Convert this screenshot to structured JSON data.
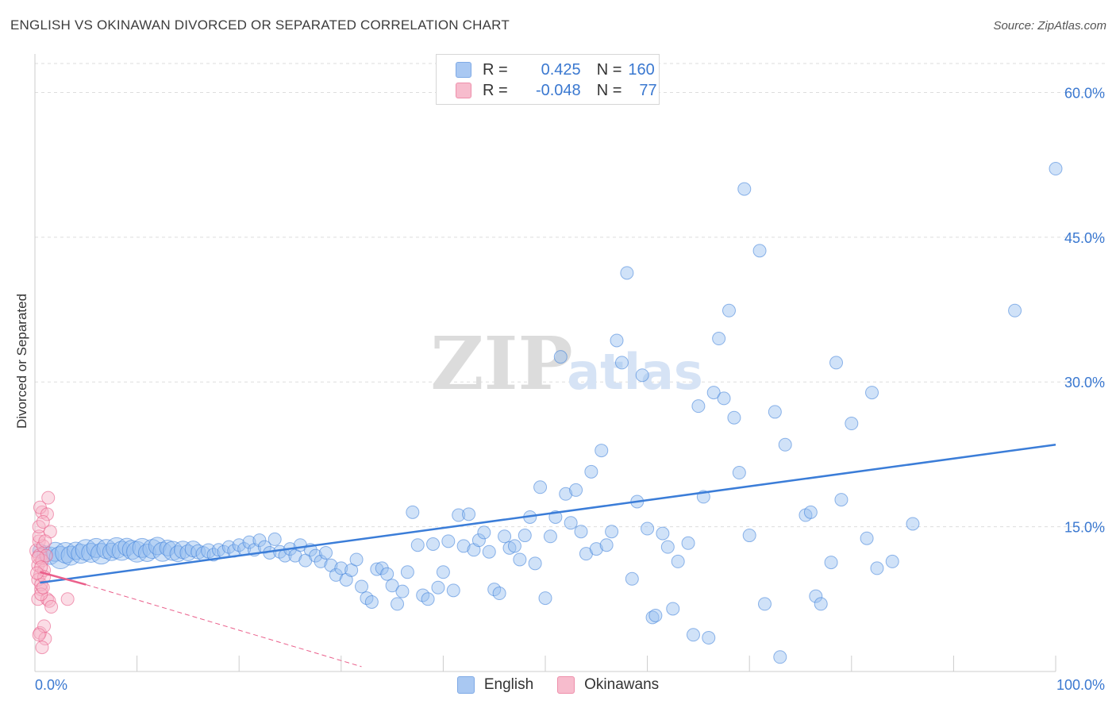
{
  "title": "ENGLISH VS OKINAWAN DIVORCED OR SEPARATED CORRELATION CHART",
  "source": "Source: ZipAtlas.com",
  "watermark": {
    "zip": "ZIP",
    "atlas": "atlas"
  },
  "legend": {
    "rows": [
      {
        "r_label": "R =",
        "r_value": "0.425",
        "n_label": "N =",
        "n_value": "160",
        "color": "#a9c8f2",
        "border": "#7faae6"
      },
      {
        "r_label": "R =",
        "r_value": "-0.048",
        "n_label": "N =",
        "n_value": "77",
        "color": "#f7bccd",
        "border": "#ee8fab"
      }
    ],
    "bottom": [
      {
        "label": "English",
        "color": "#a9c8f2",
        "border": "#7faae6"
      },
      {
        "label": "Okinawans",
        "color": "#f7bccd",
        "border": "#ee8fab"
      }
    ]
  },
  "chart_data": {
    "type": "scatter",
    "title": "ENGLISH VS OKINAWAN DIVORCED OR SEPARATED CORRELATION CHART",
    "xlabel": "",
    "ylabel": "Divorced or Separated",
    "xlim": [
      0,
      100
    ],
    "ylim": [
      0,
      63
    ],
    "x_tick_labels": [
      "0.0%",
      "100.0%"
    ],
    "y_ticks": [
      15,
      30,
      45,
      60
    ],
    "y_tick_labels": [
      "15.0%",
      "30.0%",
      "45.0%",
      "60.0%"
    ],
    "colors": {
      "english": "#3b7dd8",
      "english_fill": "rgba(150,190,240,0.45)",
      "okinawan": "#ea5f8b",
      "okinawan_fill": "rgba(247,180,200,0.45)",
      "grid": "#dddddd",
      "tick_text": "#3a78d0"
    },
    "series": [
      {
        "name": "English",
        "trend": {
          "x": [
            0.5,
            100
          ],
          "y": [
            9.2,
            23.5
          ]
        },
        "points": [
          [
            0.5,
            12.5,
            9
          ],
          [
            1.0,
            12.2,
            10
          ],
          [
            1.5,
            12.0,
            11
          ],
          [
            2.0,
            12.4,
            12
          ],
          [
            2.5,
            11.8,
            14
          ],
          [
            3.0,
            12.3,
            13
          ],
          [
            3.5,
            12.0,
            12
          ],
          [
            4.0,
            12.5,
            11
          ],
          [
            4.5,
            12.2,
            12
          ],
          [
            5.0,
            12.6,
            13
          ],
          [
            5.5,
            12.3,
            12
          ],
          [
            6.0,
            12.8,
            12
          ],
          [
            6.5,
            12.2,
            13
          ],
          [
            7.0,
            12.7,
            12
          ],
          [
            7.5,
            12.4,
            11
          ],
          [
            8.0,
            12.8,
            13
          ],
          [
            8.5,
            12.5,
            12
          ],
          [
            9.0,
            12.9,
            11
          ],
          [
            9.5,
            12.6,
            12
          ],
          [
            10.0,
            12.4,
            13
          ],
          [
            10.5,
            12.8,
            12
          ],
          [
            11.0,
            12.3,
            11
          ],
          [
            11.5,
            12.7,
            12
          ],
          [
            12.0,
            13.0,
            11
          ],
          [
            12.5,
            12.4,
            12
          ],
          [
            13.0,
            12.8,
            10
          ],
          [
            13.5,
            12.5,
            12
          ],
          [
            14.0,
            12.2,
            10
          ],
          [
            14.5,
            12.6,
            11
          ],
          [
            15.0,
            12.3,
            10
          ],
          [
            15.5,
            12.7,
            10
          ],
          [
            16.0,
            12.4,
            9
          ],
          [
            16.5,
            12.2,
            9
          ],
          [
            17.0,
            12.5,
            9
          ],
          [
            17.5,
            12.1,
            8
          ],
          [
            18.0,
            12.6,
            8
          ],
          [
            18.5,
            12.4,
            8
          ],
          [
            19.0,
            12.9,
            8
          ],
          [
            19.5,
            12.5,
            8
          ],
          [
            20.0,
            13.1,
            8
          ],
          [
            20.5,
            12.7,
            8
          ],
          [
            21.0,
            13.4,
            8
          ],
          [
            21.5,
            12.6,
            8
          ],
          [
            22.0,
            13.6,
            8
          ],
          [
            22.5,
            12.9,
            8
          ],
          [
            23.0,
            12.3,
            8
          ],
          [
            23.5,
            13.7,
            8
          ],
          [
            24.0,
            12.4,
            8
          ],
          [
            24.5,
            12.0,
            8
          ],
          [
            25.0,
            12.7,
            8
          ],
          [
            25.5,
            12.0,
            8
          ],
          [
            26.0,
            13.1,
            8
          ],
          [
            26.5,
            11.5,
            8
          ],
          [
            27.0,
            12.6,
            8
          ],
          [
            27.5,
            12.0,
            8
          ],
          [
            28.0,
            11.4,
            8
          ],
          [
            28.5,
            12.3,
            8
          ],
          [
            29.0,
            11.0,
            8
          ],
          [
            29.5,
            10.0,
            8
          ],
          [
            30.0,
            10.7,
            8
          ],
          [
            30.5,
            9.5,
            8
          ],
          [
            31.0,
            10.5,
            8
          ],
          [
            31.5,
            11.6,
            8
          ],
          [
            32.0,
            8.8,
            8
          ],
          [
            32.5,
            7.6,
            8
          ],
          [
            33.0,
            7.2,
            8
          ],
          [
            33.5,
            10.6,
            8
          ],
          [
            34.0,
            10.7,
            8
          ],
          [
            34.5,
            10.1,
            8
          ],
          [
            35.0,
            8.9,
            8
          ],
          [
            35.5,
            7.0,
            8
          ],
          [
            36.0,
            8.3,
            8
          ],
          [
            36.5,
            10.3,
            8
          ],
          [
            37.0,
            16.5,
            8
          ],
          [
            37.5,
            13.1,
            8
          ],
          [
            38.0,
            7.9,
            8
          ],
          [
            38.5,
            7.5,
            8
          ],
          [
            39.0,
            13.2,
            8
          ],
          [
            39.5,
            8.7,
            8
          ],
          [
            40.0,
            10.3,
            8
          ],
          [
            40.5,
            13.5,
            8
          ],
          [
            41.0,
            8.4,
            8
          ],
          [
            41.5,
            16.2,
            8
          ],
          [
            42.0,
            13.0,
            8
          ],
          [
            42.5,
            16.3,
            8
          ],
          [
            43.0,
            12.6,
            8
          ],
          [
            43.5,
            13.6,
            8
          ],
          [
            44.0,
            14.4,
            8
          ],
          [
            44.5,
            12.4,
            8
          ],
          [
            45.0,
            8.5,
            8
          ],
          [
            45.5,
            8.1,
            8
          ],
          [
            46.0,
            14.0,
            8
          ],
          [
            46.5,
            12.8,
            8
          ],
          [
            47.0,
            13.0,
            8
          ],
          [
            47.5,
            11.6,
            8
          ],
          [
            48.0,
            14.1,
            8
          ],
          [
            48.5,
            16.0,
            8
          ],
          [
            49.0,
            11.2,
            8
          ],
          [
            49.5,
            19.1,
            8
          ],
          [
            50.0,
            7.6,
            8
          ],
          [
            50.5,
            14.0,
            8
          ],
          [
            51.0,
            16.0,
            8
          ],
          [
            51.5,
            32.6,
            8
          ],
          [
            52.0,
            18.4,
            8
          ],
          [
            52.5,
            15.4,
            8
          ],
          [
            53.0,
            18.8,
            8
          ],
          [
            53.5,
            14.5,
            8
          ],
          [
            54.0,
            12.2,
            8
          ],
          [
            54.5,
            20.7,
            8
          ],
          [
            55.0,
            12.7,
            8
          ],
          [
            55.5,
            22.9,
            8
          ],
          [
            56.0,
            13.1,
            8
          ],
          [
            56.5,
            14.5,
            8
          ],
          [
            57.0,
            34.3,
            8
          ],
          [
            57.5,
            32.0,
            8
          ],
          [
            58.0,
            41.3,
            8
          ],
          [
            58.5,
            9.6,
            8
          ],
          [
            59.0,
            17.6,
            8
          ],
          [
            59.5,
            30.7,
            8
          ],
          [
            60.0,
            14.8,
            8
          ],
          [
            60.5,
            5.6,
            8
          ],
          [
            60.8,
            5.8,
            8
          ],
          [
            61.5,
            14.3,
            8
          ],
          [
            62.0,
            12.9,
            8
          ],
          [
            62.5,
            6.5,
            8
          ],
          [
            63.0,
            11.4,
            8
          ],
          [
            64.0,
            13.3,
            8
          ],
          [
            64.5,
            3.8,
            8
          ],
          [
            65.0,
            27.5,
            8
          ],
          [
            65.5,
            18.1,
            8
          ],
          [
            66.0,
            3.5,
            8
          ],
          [
            66.5,
            28.9,
            8
          ],
          [
            67.0,
            34.5,
            8
          ],
          [
            67.5,
            28.3,
            8
          ],
          [
            68.0,
            37.4,
            8
          ],
          [
            68.5,
            26.3,
            8
          ],
          [
            69.0,
            20.6,
            8
          ],
          [
            69.5,
            50.0,
            8
          ],
          [
            70.0,
            14.1,
            8
          ],
          [
            71.0,
            43.6,
            8
          ],
          [
            71.5,
            7.0,
            8
          ],
          [
            72.5,
            26.9,
            8
          ],
          [
            73.0,
            1.5,
            8
          ],
          [
            73.5,
            23.5,
            8
          ],
          [
            75.5,
            16.2,
            8
          ],
          [
            76.0,
            16.5,
            8
          ],
          [
            76.5,
            7.8,
            8
          ],
          [
            77.0,
            7.0,
            8
          ],
          [
            78.5,
            32.0,
            8
          ],
          [
            78.0,
            11.3,
            8
          ],
          [
            79.0,
            17.8,
            8
          ],
          [
            80.0,
            25.7,
            8
          ],
          [
            81.5,
            13.8,
            8
          ],
          [
            82.0,
            28.9,
            8
          ],
          [
            82.5,
            10.7,
            8
          ],
          [
            84.0,
            11.4,
            8
          ],
          [
            86.0,
            15.3,
            8
          ],
          [
            96.0,
            37.4,
            8
          ],
          [
            100.0,
            52.1,
            8
          ]
        ]
      },
      {
        "name": "Okinawans",
        "trend": {
          "x": [
            0.5,
            5.0
          ],
          "y": [
            10.3,
            9.0
          ],
          "dashed_to": {
            "x": [
              5.0,
              32.0
            ],
            "y": [
              9.0,
              0.5
            ]
          }
        },
        "points": [
          [
            0.2,
            12.5,
            9
          ],
          [
            0.3,
            11.0,
            8
          ],
          [
            0.4,
            13.5,
            8
          ],
          [
            0.5,
            10.0,
            8
          ],
          [
            0.6,
            8.5,
            8
          ],
          [
            0.3,
            9.5,
            8
          ],
          [
            0.5,
            12.0,
            9
          ],
          [
            0.7,
            11.5,
            8
          ],
          [
            0.8,
            13.0,
            8
          ],
          [
            0.4,
            14.0,
            8
          ],
          [
            0.9,
            10.5,
            8
          ],
          [
            0.6,
            9.0,
            8
          ],
          [
            0.3,
            7.5,
            8
          ],
          [
            0.7,
            16.5,
            8
          ],
          [
            0.5,
            17.0,
            8
          ],
          [
            1.2,
            16.3,
            8
          ],
          [
            1.3,
            18.0,
            8
          ],
          [
            1.5,
            14.5,
            8
          ],
          [
            0.4,
            15.0,
            8
          ],
          [
            0.8,
            15.5,
            8
          ],
          [
            1.0,
            13.5,
            8
          ],
          [
            1.1,
            12.0,
            8
          ],
          [
            0.3,
            11.8,
            8
          ],
          [
            0.6,
            10.8,
            8
          ],
          [
            0.9,
            9.8,
            8
          ],
          [
            1.2,
            7.5,
            8
          ],
          [
            1.4,
            7.3,
            8
          ],
          [
            1.6,
            6.7,
            8
          ],
          [
            0.5,
            4.0,
            8
          ],
          [
            0.9,
            4.7,
            8
          ],
          [
            1.0,
            3.4,
            8
          ],
          [
            0.7,
            2.5,
            8
          ],
          [
            0.4,
            3.8,
            8
          ],
          [
            3.2,
            7.5,
            8
          ],
          [
            0.6,
            8.0,
            8
          ],
          [
            0.8,
            8.7,
            8
          ],
          [
            0.2,
            10.2,
            8
          ]
        ]
      }
    ]
  }
}
